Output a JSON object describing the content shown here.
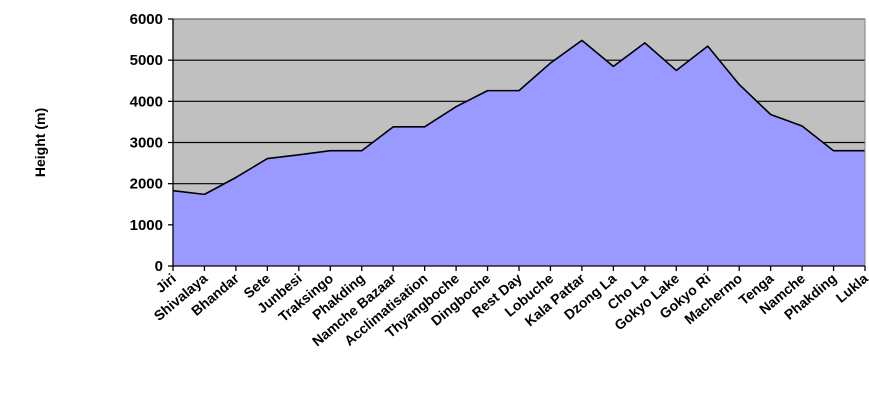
{
  "chart_data": {
    "type": "area",
    "title": "",
    "xlabel": "",
    "ylabel": "Height (m)",
    "ylim": [
      0,
      6000
    ],
    "yticks": [
      0,
      1000,
      2000,
      3000,
      4000,
      5000,
      6000
    ],
    "grid": true,
    "legend": "none",
    "categories": [
      "Jiri",
      "Shivalaya",
      "Bhandar",
      "Sete",
      "Junbesi",
      "Traksingo",
      "Phakding",
      "Namche Bazaar",
      "Acclimatisation",
      "Thyangboche",
      "Dingboche",
      "Rest Day",
      "Lobuche",
      "Kala Pattar",
      "Dzong La",
      "Cho La",
      "Gokyo Lake",
      "Gokyo Ri",
      "Machermo",
      "Tenga",
      "Namche",
      "Phakding",
      "Lukla"
    ],
    "values": [
      1830,
      1740,
      2150,
      2610,
      2700,
      2800,
      2800,
      3380,
      3380,
      3870,
      4260,
      4260,
      4930,
      5480,
      4850,
      5420,
      4750,
      5340,
      4410,
      3680,
      3400,
      2800,
      2800
    ],
    "colors": {
      "plot_background": "#c0c0c0",
      "area_fill": "#9999ff",
      "line": "#000000",
      "grid": "#000000"
    }
  }
}
